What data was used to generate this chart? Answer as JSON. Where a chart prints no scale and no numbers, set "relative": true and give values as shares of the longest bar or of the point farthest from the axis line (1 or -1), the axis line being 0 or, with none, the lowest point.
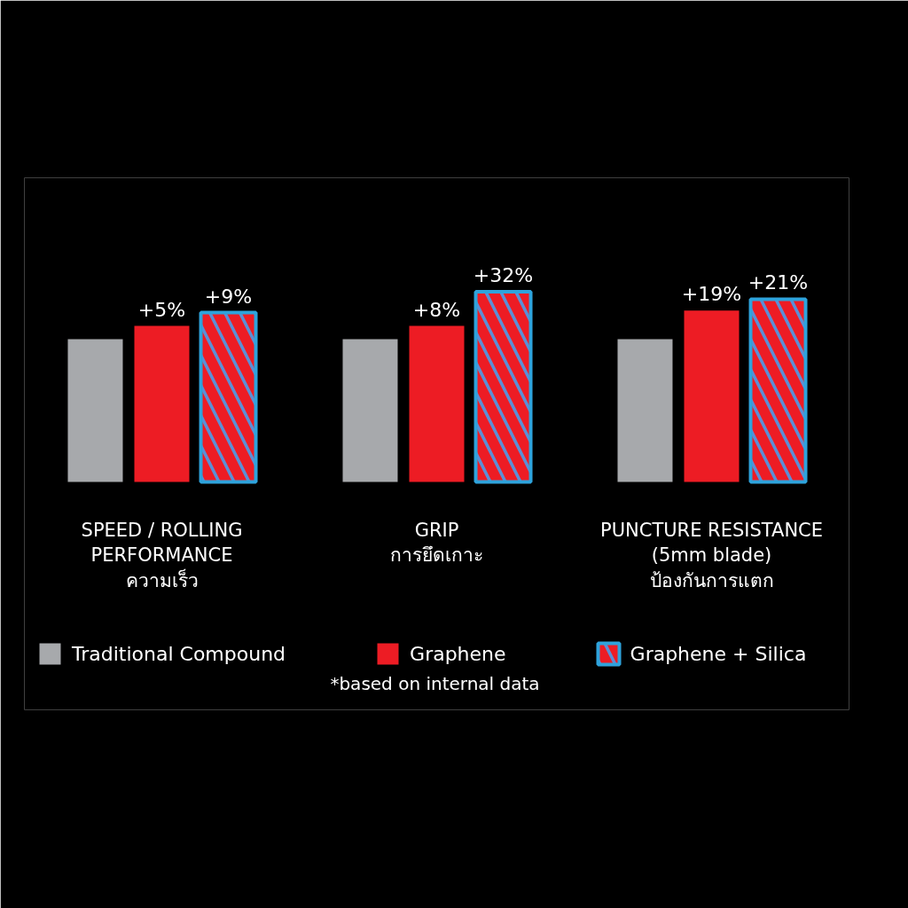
{
  "chart_data": {
    "type": "bar",
    "relative": true,
    "categories": [
      "SPEED / ROLLING\nPERFORMANCE\nความเร็ว",
      "GRIP\nการยึดเกาะ",
      "PUNCTURE RESISTANCE\n(5mm blade)\nป้องกันการแตก"
    ],
    "series": [
      {
        "name": "Traditional Compound",
        "color": "#a7a9ac",
        "values": [
          0.75,
          0.75,
          0.75
        ]
      },
      {
        "name": "Graphene",
        "color": "#ed1c24",
        "values": [
          0.82,
          0.82,
          0.9
        ]
      },
      {
        "name": "Graphene + Silica",
        "color": "#ed1c24",
        "values": [
          0.89,
          1,
          0.96
        ]
      }
    ],
    "legend": "bottom",
    "grid": false,
    "annotations": [
      {
        "text": "+5%",
        "x": "SPEED / ROLLING\nPERFORMANCE\nความเร็ว",
        "y": 0.82
      },
      {
        "text": "+9%",
        "y": 0.89
      },
      {
        "text": "+8%",
        "x": "GRIP\nการยึดเกาะ",
        "y": 0.82
      },
      {
        "text": "+32%",
        "y": 1
      },
      {
        "text": "+19%",
        "x": "PUNCTURE RESISTANCE\n(5mm blade)\nป้องกันการแตก",
        "y": 0.9
      },
      {
        "text": "+21%",
        "y": 0.96
      },
      "*based on internal data"
    ]
  }
}
